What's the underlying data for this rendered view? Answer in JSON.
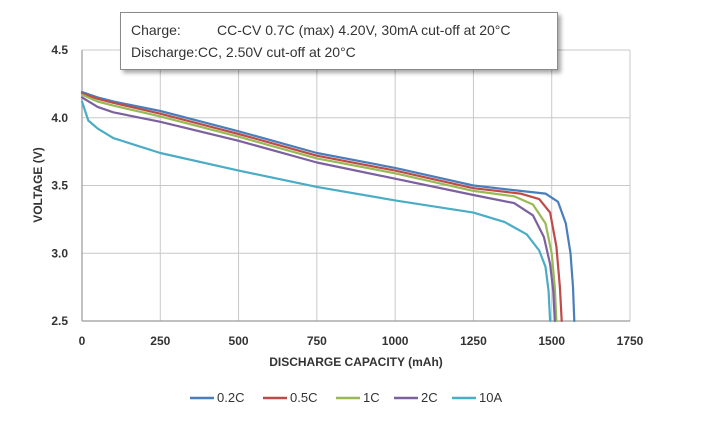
{
  "chart_data": {
    "type": "line",
    "title": "",
    "xlabel": "DISCHARGE CAPACITY (mAh)",
    "ylabel": "VOLTAGE (V)",
    "xlim": [
      0,
      1750
    ],
    "ylim": [
      2.5,
      4.5
    ],
    "xticks": [
      "0",
      "250",
      "500",
      "750",
      "1000",
      "1250",
      "1500",
      "1750"
    ],
    "yticks": [
      "2.5",
      "3.0",
      "3.5",
      "4.0",
      "4.5"
    ],
    "grid": true,
    "legend_position": "bottom",
    "annotation": {
      "charge_label": "Charge:",
      "charge_text": "CC-CV 0.7C (max) 4.20V, 30mA cut-off at 20°C",
      "discharge_label": "Discharge:",
      "discharge_text": "CC, 2.50V cut-off at 20°C"
    },
    "series": [
      {
        "name": "0.2C",
        "color": "#4a7ebb",
        "x": [
          0,
          50,
          100,
          250,
          500,
          750,
          1000,
          1250,
          1400,
          1480,
          1520,
          1545,
          1560,
          1568,
          1572
        ],
        "y": [
          4.19,
          4.15,
          4.12,
          4.05,
          3.9,
          3.74,
          3.63,
          3.5,
          3.46,
          3.44,
          3.38,
          3.22,
          3.0,
          2.75,
          2.5
        ]
      },
      {
        "name": "0.5C",
        "color": "#be4b48",
        "x": [
          0,
          50,
          100,
          250,
          500,
          750,
          1000,
          1250,
          1400,
          1460,
          1495,
          1515,
          1526,
          1532
        ],
        "y": [
          4.18,
          4.14,
          4.11,
          4.03,
          3.88,
          3.72,
          3.61,
          3.48,
          3.44,
          3.4,
          3.3,
          3.05,
          2.75,
          2.5
        ]
      },
      {
        "name": "1C",
        "color": "#98b954",
        "x": [
          0,
          50,
          100,
          250,
          500,
          750,
          1000,
          1250,
          1380,
          1440,
          1480,
          1500,
          1510,
          1515
        ],
        "y": [
          4.17,
          4.12,
          4.09,
          4.01,
          3.86,
          3.7,
          3.59,
          3.46,
          3.42,
          3.36,
          3.22,
          3.0,
          2.75,
          2.5
        ]
      },
      {
        "name": "2C",
        "color": "#7d60a0",
        "x": [
          0,
          50,
          100,
          250,
          500,
          750,
          1000,
          1250,
          1380,
          1440,
          1475,
          1495,
          1505,
          1510
        ],
        "y": [
          4.15,
          4.08,
          4.04,
          3.97,
          3.83,
          3.67,
          3.55,
          3.43,
          3.37,
          3.28,
          3.12,
          2.92,
          2.72,
          2.5
        ]
      },
      {
        "name": "10A",
        "color": "#4bacc6",
        "x": [
          0,
          20,
          50,
          100,
          250,
          500,
          750,
          1000,
          1250,
          1350,
          1420,
          1460,
          1480,
          1490,
          1495
        ],
        "y": [
          4.12,
          3.98,
          3.92,
          3.85,
          3.74,
          3.61,
          3.49,
          3.39,
          3.3,
          3.23,
          3.14,
          3.02,
          2.9,
          2.72,
          2.5
        ]
      }
    ]
  }
}
